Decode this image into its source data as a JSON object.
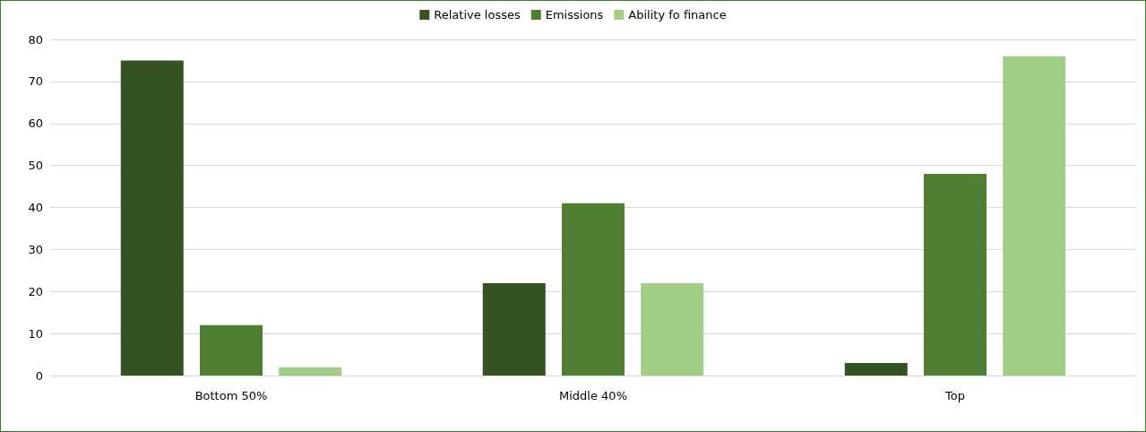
{
  "chart_data": {
    "type": "bar",
    "categories": [
      "Bottom 50%",
      "Middle 40%",
      "Top"
    ],
    "series": [
      {
        "name": "Relative losses",
        "color": "#365323",
        "values": [
          75,
          22,
          3
        ]
      },
      {
        "name": "Emissions",
        "color": "#507e32",
        "values": [
          12,
          41,
          48
        ]
      },
      {
        "name": "Ability fo finance",
        "color": "#a2cd87",
        "values": [
          2,
          22,
          76
        ]
      }
    ],
    "ylim": [
      0,
      80
    ],
    "yticks": [
      0,
      10,
      20,
      30,
      40,
      50,
      60,
      70,
      80
    ],
    "grid": "y",
    "legend": "top"
  }
}
